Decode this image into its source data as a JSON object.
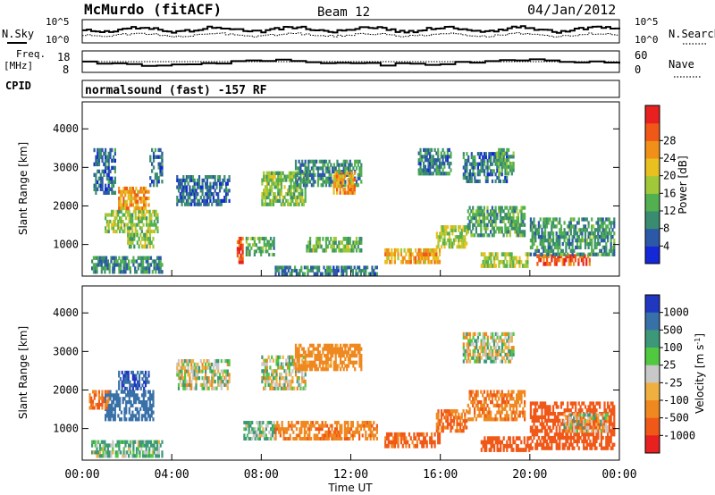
{
  "header": {
    "site": "McMurdo (fitACF)",
    "beam": "Beam 12",
    "date": "04/Jan/2012"
  },
  "top_strips": {
    "nsky_label": "N.Sky",
    "nsky_ticks": [
      "10^5",
      "10^0"
    ],
    "nsearch_label": "N.Search",
    "nsearch_ticks": [
      "10^5",
      "10^0"
    ],
    "freq_label_line1": "Freq.",
    "freq_label_line2": "[MHz]",
    "freq_ticks": [
      "18",
      "8"
    ],
    "nave_label": "Nave",
    "nave_ticks": [
      "60",
      "0"
    ],
    "cpid_label": "CPID",
    "cpid_value": "normalsound (fast) -157 RF"
  },
  "chart_data": [
    {
      "type": "heatmap",
      "name": "power",
      "ylabel": "Slant Range [km]",
      "ylim": [
        180,
        4700
      ],
      "yticks": [
        1000,
        2000,
        3000,
        4000
      ],
      "xlim_hours": [
        0,
        24
      ],
      "colorbar": {
        "label": "Power [dB]",
        "range": [
          0,
          32
        ],
        "ticks": [
          "4",
          "8",
          "12",
          "16",
          "20",
          "24",
          "28"
        ],
        "colors": [
          "#1428d8",
          "#2c58a8",
          "#3a8c70",
          "#52b050",
          "#a0c838",
          "#e8c020",
          "#f09018",
          "#f05818",
          "#e82020"
        ]
      },
      "echo_regions": [
        {
          "t0": 0.4,
          "t1": 3.6,
          "r0": 250,
          "r1": 700,
          "level": 9
        },
        {
          "t0": 0.5,
          "t1": 1.5,
          "r0": 2300,
          "r1": 3500,
          "level": 6
        },
        {
          "t0": 1.0,
          "t1": 3.4,
          "r0": 1300,
          "r1": 1900,
          "level": 15
        },
        {
          "t0": 1.6,
          "t1": 3.0,
          "r0": 1900,
          "r1": 2500,
          "level": 22
        },
        {
          "t0": 2.0,
          "t1": 3.2,
          "r0": 900,
          "r1": 1300,
          "level": 14
        },
        {
          "t0": 3.0,
          "t1": 3.6,
          "r0": 2500,
          "r1": 3500,
          "level": 7
        },
        {
          "t0": 4.2,
          "t1": 6.6,
          "r0": 2000,
          "r1": 2800,
          "level": 6
        },
        {
          "t0": 6.9,
          "t1": 7.2,
          "r0": 500,
          "r1": 1200,
          "level": 28
        },
        {
          "t0": 7.3,
          "t1": 8.6,
          "r0": 700,
          "r1": 1200,
          "level": 12
        },
        {
          "t0": 8.0,
          "t1": 10.0,
          "r0": 2000,
          "r1": 2900,
          "level": 14
        },
        {
          "t0": 9.5,
          "t1": 12.5,
          "r0": 2500,
          "r1": 3200,
          "level": 9
        },
        {
          "t0": 11.2,
          "t1": 12.2,
          "r0": 2300,
          "r1": 2900,
          "level": 22
        },
        {
          "t0": 8.6,
          "t1": 13.2,
          "r0": 200,
          "r1": 450,
          "level": 8
        },
        {
          "t0": 10.0,
          "t1": 12.5,
          "r0": 800,
          "r1": 1200,
          "level": 13
        },
        {
          "t0": 13.5,
          "t1": 16.0,
          "r0": 500,
          "r1": 900,
          "level": 22
        },
        {
          "t0": 15.0,
          "t1": 16.5,
          "r0": 2800,
          "r1": 3500,
          "level": 8
        },
        {
          "t0": 15.8,
          "t1": 17.2,
          "r0": 900,
          "r1": 1500,
          "level": 16
        },
        {
          "t0": 17.2,
          "t1": 19.8,
          "r0": 1200,
          "r1": 2000,
          "level": 11
        },
        {
          "t0": 17.0,
          "t1": 19.0,
          "r0": 2600,
          "r1": 3400,
          "level": 7
        },
        {
          "t0": 17.8,
          "t1": 20.0,
          "r0": 400,
          "r1": 800,
          "level": 16
        },
        {
          "t0": 18.5,
          "t1": 19.3,
          "r0": 2800,
          "r1": 3500,
          "level": 12
        },
        {
          "t0": 20.3,
          "t1": 22.7,
          "r0": 450,
          "r1": 750,
          "level": 27
        },
        {
          "t0": 20.0,
          "t1": 23.8,
          "r0": 700,
          "r1": 1700,
          "level": 10
        }
      ]
    },
    {
      "type": "heatmap",
      "name": "velocity",
      "ylabel": "Slant Range [km]",
      "ylim": [
        180,
        4700
      ],
      "yticks": [
        1000,
        2000,
        3000,
        4000
      ],
      "xlabel": "Time UT",
      "xlim_hours": [
        0,
        24
      ],
      "xticks": [
        "00:00",
        "04:00",
        "08:00",
        "12:00",
        "16:00",
        "20:00",
        "00:00"
      ],
      "colorbar": {
        "label": "Velocity [m s",
        "label_sup": "-1",
        "label_end": "]",
        "ticks": [
          "1000",
          "500",
          "100",
          "25",
          "-25",
          "-100",
          "-500",
          "-1000"
        ],
        "colors": [
          "#2038c0",
          "#3870a8",
          "#3c9878",
          "#50c840",
          "#c8c8c8",
          "#f0b040",
          "#f08820",
          "#f05818",
          "#e82020"
        ]
      },
      "echo_regions": [
        {
          "t0": 0.4,
          "t1": 3.6,
          "r0": 250,
          "r1": 700,
          "v": 60
        },
        {
          "t0": 1.0,
          "t1": 3.2,
          "r0": 1200,
          "r1": 2000,
          "v": 450
        },
        {
          "t0": 1.6,
          "t1": 3.0,
          "r0": 2000,
          "r1": 2500,
          "v": 800
        },
        {
          "t0": 0.3,
          "t1": 1.2,
          "r0": 1500,
          "r1": 2000,
          "v": -300
        },
        {
          "t0": 4.2,
          "t1": 6.6,
          "r0": 2000,
          "r1": 2800,
          "v": 0
        },
        {
          "t0": 7.2,
          "t1": 8.6,
          "r0": 700,
          "r1": 1200,
          "v": 60
        },
        {
          "t0": 8.0,
          "t1": 10.0,
          "r0": 2000,
          "r1": 2900,
          "v": 0
        },
        {
          "t0": 9.5,
          "t1": 12.5,
          "r0": 2500,
          "r1": 3200,
          "v": -150
        },
        {
          "t0": 8.6,
          "t1": 13.2,
          "r0": 700,
          "r1": 1200,
          "v": -250
        },
        {
          "t0": 13.5,
          "t1": 16.0,
          "r0": 500,
          "r1": 900,
          "v": -350
        },
        {
          "t0": 15.8,
          "t1": 17.2,
          "r0": 900,
          "r1": 1500,
          "v": -300
        },
        {
          "t0": 17.2,
          "t1": 19.8,
          "r0": 1200,
          "r1": 2000,
          "v": -250
        },
        {
          "t0": 17.0,
          "t1": 19.3,
          "r0": 2700,
          "r1": 3500,
          "v": 0
        },
        {
          "t0": 17.8,
          "t1": 20.0,
          "r0": 400,
          "r1": 800,
          "v": -400
        },
        {
          "t0": 20.0,
          "t1": 23.8,
          "r0": 450,
          "r1": 1700,
          "v": -400
        },
        {
          "t0": 21.5,
          "t1": 23.5,
          "r0": 900,
          "r1": 1400,
          "v": 0
        }
      ]
    }
  ]
}
